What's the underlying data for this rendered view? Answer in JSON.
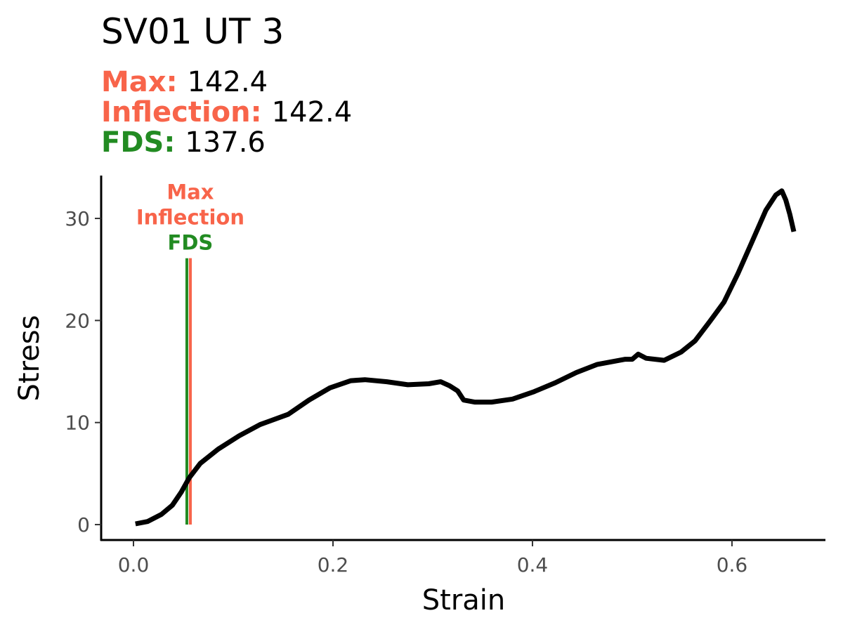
{
  "chart_data": {
    "type": "line",
    "title": "SV01 UT 3",
    "subtitle": [
      {
        "name": "Max:",
        "value": "142.4",
        "color": "#f8644a"
      },
      {
        "name": "Inflection:",
        "value": "142.4",
        "color": "#f8644a"
      },
      {
        "name": "FDS:",
        "value": "137.6",
        "color": "#228b22"
      }
    ],
    "x_label": "Strain",
    "y_label": "Stress",
    "xlim": [
      -0.0324,
      0.6937
    ],
    "ylim": [
      -1.51,
      34.2
    ],
    "xticks": [
      {
        "value": 0,
        "label": "0.0"
      },
      0.2,
      0.4,
      0.6
    ],
    "yticks": [
      0,
      10,
      20,
      30
    ],
    "grid": false,
    "x": [
      0.002,
      0.014,
      0.028,
      0.039,
      0.048,
      0.056,
      0.067,
      0.085,
      0.106,
      0.127,
      0.155,
      0.176,
      0.197,
      0.218,
      0.232,
      0.254,
      0.275,
      0.296,
      0.308,
      0.317,
      0.325,
      0.331,
      0.342,
      0.359,
      0.38,
      0.401,
      0.423,
      0.444,
      0.465,
      0.493,
      0.5,
      0.506,
      0.514,
      0.532,
      0.549,
      0.563,
      0.577,
      0.592,
      0.606,
      0.62,
      0.634,
      0.644,
      0.65,
      0.654,
      0.658,
      0.662
    ],
    "series": [
      {
        "color": "#000000",
        "values": [
          0.07,
          0.3,
          1.0,
          1.9,
          3.2,
          4.6,
          6.0,
          7.4,
          8.7,
          9.8,
          10.8,
          12.2,
          13.4,
          14.1,
          14.2,
          14.0,
          13.7,
          13.8,
          14.0,
          13.6,
          13.1,
          12.2,
          12.0,
          12.0,
          12.3,
          13.0,
          13.9,
          14.9,
          15.7,
          16.2,
          16.2,
          16.7,
          16.3,
          16.1,
          16.9,
          18.0,
          19.8,
          21.8,
          24.6,
          27.7,
          30.8,
          32.3,
          32.7,
          31.8,
          30.4,
          28.7
        ]
      }
    ],
    "vline_range": [
      0,
      26.1
    ],
    "vlines": [
      {
        "label": "Max",
        "x": 0.057,
        "color": "#f8644a"
      },
      {
        "label": "Inflection",
        "x": 0.057,
        "color": "#f8644a"
      },
      {
        "label": "FDS",
        "x": 0.0535,
        "color": "#228b22"
      }
    ]
  }
}
